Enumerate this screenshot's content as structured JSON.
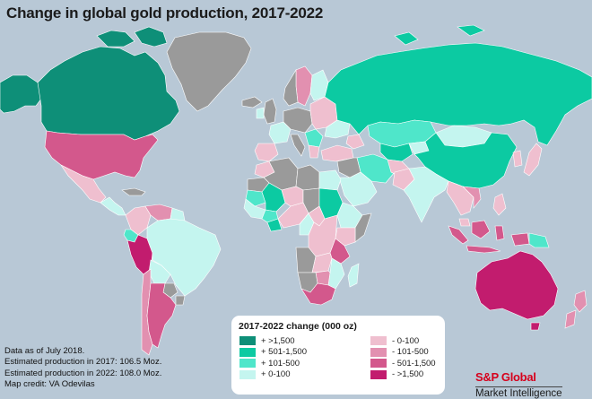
{
  "title": "Change in global gold production, 2017-2022",
  "colors": {
    "ocean": "#b8c8d6",
    "no_data": "#9a9a9a",
    "large_increase": "#0e8f78",
    "increase_501_1500": "#0ccaa2",
    "increase_101_500": "#4fe6ca",
    "increase_0_100": "#c4f5ef",
    "decrease_0_100": "#efbfcf",
    "decrease_101_500": "#e290b0",
    "decrease_501_1500": "#d3588c",
    "large_decrease": "#c21c6e",
    "border": "#ffffff"
  },
  "legend": {
    "title": "2017-2022 change (000 oz)",
    "items": [
      {
        "label": "+ >1,500",
        "color": "#0e8f78"
      },
      {
        "label": "+ 501-1,500",
        "color": "#0ccaa2"
      },
      {
        "label": "+ 101-500",
        "color": "#4fe6ca"
      },
      {
        "label": "+ 0-100",
        "color": "#c4f5ef"
      },
      {
        "label": "- 0-100",
        "color": "#efbfcf"
      },
      {
        "label": "- 101-500",
        "color": "#e290b0"
      },
      {
        "label": "- 501-1,500",
        "color": "#d3588c"
      },
      {
        "label": "- >1,500",
        "color": "#c21c6e"
      }
    ]
  },
  "notes": [
    "Data as of July 2018.",
    "Estimated production in 2017: 106.5 Moz.",
    "Estimated production in 2022: 108.0 Moz.",
    "Map credit: VA Odevilas"
  ],
  "brand": {
    "name": "S&P Global",
    "sub": "Market Intelligence"
  },
  "regions": [
    {
      "name": "Greenland",
      "category": "no_data"
    },
    {
      "name": "Canada",
      "category": "large_increase"
    },
    {
      "name": "Alaska",
      "category": "large_increase"
    },
    {
      "name": "United States",
      "category": "decrease_501_1500"
    },
    {
      "name": "Mexico",
      "category": "decrease_0_100"
    },
    {
      "name": "Peru",
      "category": "large_decrease"
    },
    {
      "name": "Brazil",
      "category": "increase_0_100"
    },
    {
      "name": "Argentina",
      "category": "decrease_501_1500"
    },
    {
      "name": "Chile",
      "category": "decrease_101_500"
    },
    {
      "name": "Russia",
      "category": "increase_501_1500"
    },
    {
      "name": "China",
      "category": "increase_501_1500"
    },
    {
      "name": "Kazakhstan",
      "category": "increase_101_500"
    },
    {
      "name": "Australia",
      "category": "large_decrease"
    },
    {
      "name": "South Africa",
      "category": "decrease_501_1500"
    },
    {
      "name": "Indonesia",
      "category": "decrease_501_1500"
    },
    {
      "name": "India",
      "category": "increase_0_100"
    },
    {
      "name": "Sudan",
      "category": "increase_501_1500"
    },
    {
      "name": "Mali",
      "category": "increase_501_1500"
    },
    {
      "name": "Tanzania",
      "category": "decrease_501_1500"
    }
  ]
}
